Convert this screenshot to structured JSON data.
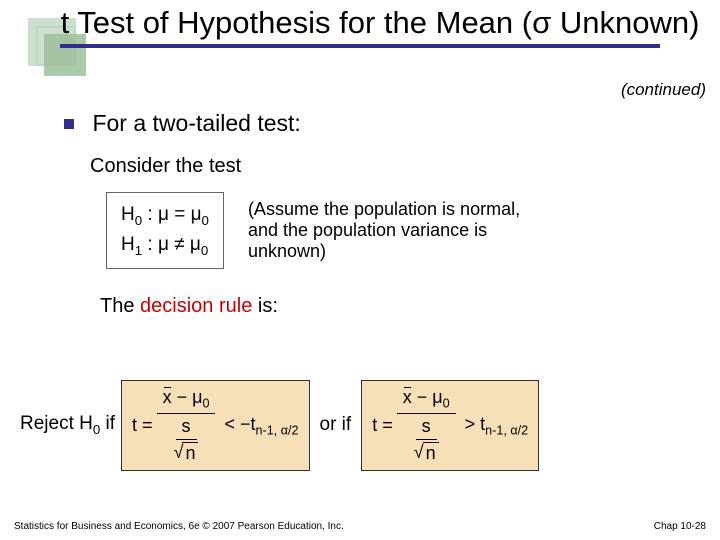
{
  "title": "t Test of Hypothesis for the Mean (σ Unknown)",
  "continued": "(continued)",
  "bullet1": "For a two-tailed test:",
  "consider": "Consider the test",
  "hypotheses": {
    "h0": "H",
    "h0sub": "0",
    "h0body": " : μ = μ",
    "h0sub2": "0",
    "h1": "H",
    "h1sub": "1",
    "h1body": " : μ ≠ μ",
    "h1sub2": "0"
  },
  "assume": "(Assume the population is normal, and the population variance is unknown)",
  "decision_pre": "The ",
  "decision_red": "decision rule",
  "decision_post": " is:",
  "rule": {
    "reject_label_pre": "Reject H",
    "reject_label_sub": "0",
    "reject_label_post": " if",
    "t_eq": "t =",
    "xbar": "x",
    "minus": " − μ",
    "mu0sub": "0",
    "s": "s",
    "n": "n",
    "lt": "< −t",
    "crit_sub": "n-1, α/2",
    "orif": "or if",
    "gt": "> t"
  },
  "colors": {
    "accent_underline": "#30308c",
    "bullet": "#30308c",
    "decision_red": "#cc0000",
    "formula_bg": "#f7e0b8",
    "deco_light": "#c8dcc8",
    "deco_mid": "#9cc09c"
  },
  "footer_left": "Statistics for Business and Economics, 6e © 2007 Pearson Education, Inc.",
  "footer_right": "Chap 10-28"
}
